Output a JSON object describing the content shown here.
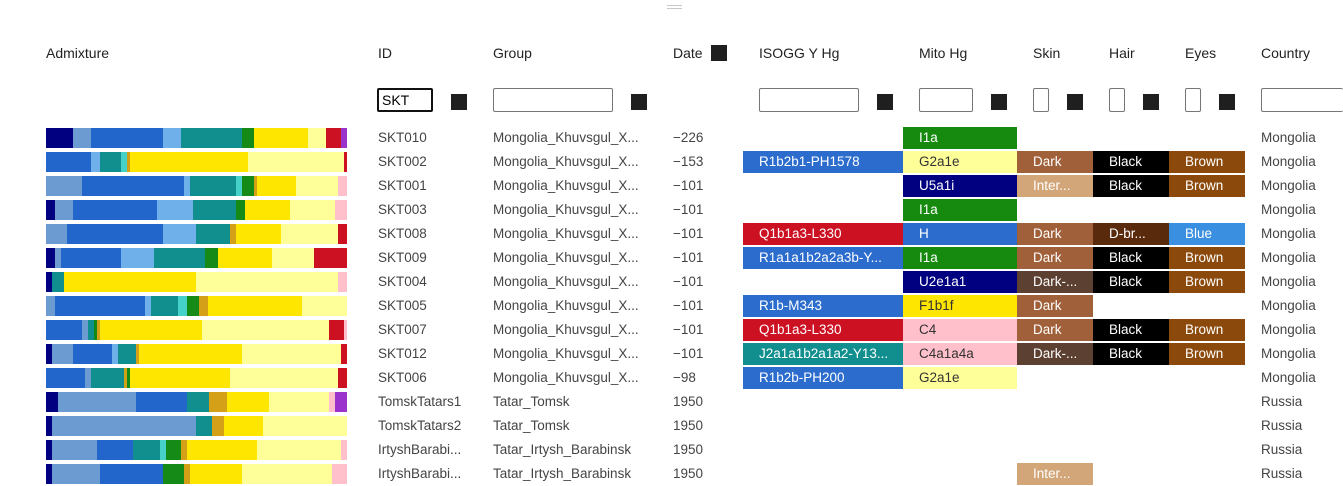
{
  "headers": {
    "admixture": "Admixture",
    "id": "ID",
    "group": "Group",
    "date": "Date",
    "ysogg": "ISOGG Y Hg",
    "mito": "Mito Hg",
    "skin": "Skin",
    "hair": "Hair",
    "eyes": "Eyes",
    "country": "Country"
  },
  "filters": {
    "id_value": "SKT",
    "group_value": ""
  },
  "palette": {
    "navy": "#000080",
    "steel": "#6b9bd1",
    "blue": "#2266cc",
    "light_blue": "#6fb0ea",
    "teal": "#118f8f",
    "aqua": "#45d1c8",
    "green": "#168a16",
    "gold": "#d4a017",
    "yellow": "#ffe600",
    "pale_yellow": "#ffff99",
    "pink": "#ffc0cb",
    "red": "#cc1122",
    "purple": "#9933cc"
  },
  "rows": [
    {
      "id": "SKT010",
      "group": "Mongolia_Khuvsgul_X...",
      "date": "−226",
      "ysogg": "",
      "ycolor": "",
      "mito": "I1a",
      "mcolor": "#158a0f",
      "mtext": "#ffffff",
      "skin": "",
      "scolor": "",
      "hair": "",
      "hcolor": "",
      "eyes": "",
      "ecolor": "",
      "country": "Mongolia",
      "admixture": [
        [
          "navy",
          0.09
        ],
        [
          "steel",
          0.06
        ],
        [
          "blue",
          0.24
        ],
        [
          "light_blue",
          0.06
        ],
        [
          "teal",
          0.2
        ],
        [
          "green",
          0.04
        ],
        [
          "yellow",
          0.18
        ],
        [
          "pale_yellow",
          0.06
        ],
        [
          "red",
          0.05
        ],
        [
          "purple",
          0.02
        ]
      ]
    },
    {
      "id": "SKT002",
      "group": "Mongolia_Khuvsgul_X...",
      "date": "−153",
      "ysogg": "R1b2b1-PH1578",
      "ycolor": "#2b6ccd",
      "mito": "G2a1e",
      "mcolor": "#ffff99",
      "mtext": "#333333",
      "skin": "Dark",
      "scolor": "#a0603a",
      "hair": "Black",
      "hcolor": "#000000",
      "eyes": "Brown",
      "ecolor": "#8b4a0b",
      "country": "Mongolia",
      "admixture": [
        [
          "blue",
          0.15
        ],
        [
          "light_blue",
          0.03
        ],
        [
          "teal",
          0.07
        ],
        [
          "aqua",
          0.02
        ],
        [
          "gold",
          0.01
        ],
        [
          "yellow",
          0.39
        ],
        [
          "pale_yellow",
          0.32
        ],
        [
          "red",
          0.01
        ]
      ]
    },
    {
      "id": "SKT001",
      "group": "Mongolia_Khuvsgul_X...",
      "date": "−101",
      "ysogg": "",
      "ycolor": "",
      "mito": "U5a1i",
      "mcolor": "#000080",
      "mtext": "#ffffff",
      "skin": "Inter...",
      "scolor": "#d2a679",
      "hair": "Black",
      "hcolor": "#000000",
      "eyes": "Brown",
      "ecolor": "#8b4a0b",
      "country": "Mongolia",
      "admixture": [
        [
          "steel",
          0.12
        ],
        [
          "blue",
          0.34
        ],
        [
          "light_blue",
          0.02
        ],
        [
          "teal",
          0.15
        ],
        [
          "aqua",
          0.02
        ],
        [
          "green",
          0.04
        ],
        [
          "gold",
          0.01
        ],
        [
          "yellow",
          0.13
        ],
        [
          "pale_yellow",
          0.14
        ],
        [
          "pink",
          0.03
        ]
      ]
    },
    {
      "id": "SKT003",
      "group": "Mongolia_Khuvsgul_X...",
      "date": "−101",
      "ysogg": "",
      "ycolor": "",
      "mito": "I1a",
      "mcolor": "#158a0f",
      "mtext": "#ffffff",
      "skin": "",
      "scolor": "",
      "hair": "",
      "hcolor": "",
      "eyes": "",
      "ecolor": "",
      "country": "Mongolia",
      "admixture": [
        [
          "navy",
          0.03
        ],
        [
          "steel",
          0.06
        ],
        [
          "blue",
          0.28
        ],
        [
          "light_blue",
          0.12
        ],
        [
          "teal",
          0.14
        ],
        [
          "green",
          0.03
        ],
        [
          "yellow",
          0.15
        ],
        [
          "pale_yellow",
          0.15
        ],
        [
          "pink",
          0.04
        ]
      ]
    },
    {
      "id": "SKT008",
      "group": "Mongolia_Khuvsgul_X...",
      "date": "−101",
      "ysogg": "Q1b1a3-L330",
      "ycolor": "#cc1122",
      "mito": "H",
      "mcolor": "#2b6ccd",
      "mtext": "#ffffff",
      "skin": "Dark",
      "scolor": "#a0603a",
      "hair": "D-br...",
      "hcolor": "#5a2a0c",
      "eyes": "Blue",
      "ecolor": "#3a8fe0",
      "country": "Mongolia",
      "admixture": [
        [
          "steel",
          0.07
        ],
        [
          "blue",
          0.32
        ],
        [
          "light_blue",
          0.11
        ],
        [
          "teal",
          0.11
        ],
        [
          "gold",
          0.02
        ],
        [
          "yellow",
          0.15
        ],
        [
          "pale_yellow",
          0.19
        ],
        [
          "red",
          0.03
        ]
      ]
    },
    {
      "id": "SKT009",
      "group": "Mongolia_Khuvsgul_X...",
      "date": "−101",
      "ysogg": "R1a1a1b2a2a3b-Y...",
      "ycolor": "#2b6ccd",
      "mito": "I1a",
      "mcolor": "#158a0f",
      "mtext": "#ffffff",
      "skin": "Dark",
      "scolor": "#a0603a",
      "hair": "Black",
      "hcolor": "#000000",
      "eyes": "Brown",
      "ecolor": "#8b4a0b",
      "country": "Mongolia",
      "admixture": [
        [
          "navy",
          0.03
        ],
        [
          "steel",
          0.02
        ],
        [
          "blue",
          0.2
        ],
        [
          "light_blue",
          0.11
        ],
        [
          "teal",
          0.17
        ],
        [
          "green",
          0.04
        ],
        [
          "yellow",
          0.18
        ],
        [
          "pale_yellow",
          0.14
        ],
        [
          "red",
          0.11
        ]
      ]
    },
    {
      "id": "SKT004",
      "group": "Mongolia_Khuvsgul_X...",
      "date": "−101",
      "ysogg": "",
      "ycolor": "",
      "mito": "U2e1a1",
      "mcolor": "#000080",
      "mtext": "#ffffff",
      "skin": "Dark-...",
      "scolor": "#5c4133",
      "hair": "Black",
      "hcolor": "#000000",
      "eyes": "Brown",
      "ecolor": "#8b4a0b",
      "country": "Mongolia",
      "admixture": [
        [
          "navy",
          0.02
        ],
        [
          "teal",
          0.04
        ],
        [
          "yellow",
          0.44
        ],
        [
          "pale_yellow",
          0.47
        ],
        [
          "pink",
          0.03
        ]
      ]
    },
    {
      "id": "SKT005",
      "group": "Mongolia_Khuvsgul_X...",
      "date": "−101",
      "ysogg": "R1b-M343",
      "ycolor": "#2b6ccd",
      "mito": "F1b1f",
      "mcolor": "#ffe600",
      "mtext": "#333333",
      "skin": "Dark",
      "scolor": "#a0603a",
      "hair": "",
      "hcolor": "",
      "eyes": "",
      "ecolor": "",
      "country": "Mongolia",
      "admixture": [
        [
          "steel",
          0.03
        ],
        [
          "blue",
          0.3
        ],
        [
          "light_blue",
          0.02
        ],
        [
          "teal",
          0.09
        ],
        [
          "aqua",
          0.03
        ],
        [
          "green",
          0.04
        ],
        [
          "gold",
          0.03
        ],
        [
          "yellow",
          0.31
        ],
        [
          "pale_yellow",
          0.15
        ]
      ]
    },
    {
      "id": "SKT007",
      "group": "Mongolia_Khuvsgul_X...",
      "date": "−101",
      "ysogg": "Q1b1a3-L330",
      "ycolor": "#cc1122",
      "mito": "C4",
      "mcolor": "#ffc0cb",
      "mtext": "#333333",
      "skin": "Dark",
      "scolor": "#a0603a",
      "hair": "Black",
      "hcolor": "#000000",
      "eyes": "Brown",
      "ecolor": "#8b4a0b",
      "country": "Mongolia",
      "admixture": [
        [
          "blue",
          0.12
        ],
        [
          "steel",
          0.02
        ],
        [
          "teal",
          0.02
        ],
        [
          "green",
          0.01
        ],
        [
          "gold",
          0.01
        ],
        [
          "yellow",
          0.34
        ],
        [
          "pale_yellow",
          0.42
        ],
        [
          "red",
          0.05
        ],
        [
          "pink",
          0.01
        ]
      ]
    },
    {
      "id": "SKT012",
      "group": "Mongolia_Khuvsgul_X...",
      "date": "−101",
      "ysogg": "J2a1a1b2a1a2-Y13...",
      "ycolor": "#118f8f",
      "mito": "C4a1a4a",
      "mcolor": "#ffc0cb",
      "mtext": "#333333",
      "skin": "Dark-...",
      "scolor": "#5c4133",
      "hair": "Black",
      "hcolor": "#000000",
      "eyes": "Brown",
      "ecolor": "#8b4a0b",
      "country": "Mongolia",
      "admixture": [
        [
          "navy",
          0.02
        ],
        [
          "steel",
          0.07
        ],
        [
          "blue",
          0.13
        ],
        [
          "light_blue",
          0.02
        ],
        [
          "teal",
          0.06
        ],
        [
          "gold",
          0.01
        ],
        [
          "yellow",
          0.34
        ],
        [
          "pale_yellow",
          0.33
        ],
        [
          "red",
          0.02
        ]
      ]
    },
    {
      "id": "SKT006",
      "group": "Mongolia_Khuvsgul_X...",
      "date": "−98",
      "ysogg": "R1b2b-PH200",
      "ycolor": "#2b6ccd",
      "mito": "G2a1e",
      "mcolor": "#ffff99",
      "mtext": "#333333",
      "skin": "",
      "scolor": "",
      "hair": "",
      "hcolor": "",
      "eyes": "",
      "ecolor": "",
      "country": "Mongolia",
      "admixture": [
        [
          "blue",
          0.13
        ],
        [
          "steel",
          0.02
        ],
        [
          "teal",
          0.11
        ],
        [
          "gold",
          0.01
        ],
        [
          "green",
          0.01
        ],
        [
          "yellow",
          0.33
        ],
        [
          "pale_yellow",
          0.36
        ],
        [
          "red",
          0.03
        ]
      ]
    },
    {
      "id": "TomskTatars1",
      "group": "Tatar_Tomsk",
      "date": "1950",
      "ysogg": "",
      "ycolor": "",
      "mito": "",
      "mcolor": "",
      "mtext": "#333333",
      "skin": "",
      "scolor": "",
      "hair": "",
      "hcolor": "",
      "eyes": "",
      "ecolor": "",
      "country": "Russia",
      "admixture": [
        [
          "navy",
          0.04
        ],
        [
          "steel",
          0.26
        ],
        [
          "blue",
          0.17
        ],
        [
          "teal",
          0.07
        ],
        [
          "gold",
          0.06
        ],
        [
          "yellow",
          0.14
        ],
        [
          "pale_yellow",
          0.2
        ],
        [
          "pink",
          0.02
        ],
        [
          "purple",
          0.04
        ]
      ]
    },
    {
      "id": "TomskTatars2",
      "group": "Tatar_Tomsk",
      "date": "1950",
      "ysogg": "",
      "ycolor": "",
      "mito": "",
      "mcolor": "",
      "mtext": "#333333",
      "skin": "",
      "scolor": "",
      "hair": "",
      "hcolor": "",
      "eyes": "",
      "ecolor": "",
      "country": "Russia",
      "admixture": [
        [
          "navy",
          0.02
        ],
        [
          "steel",
          0.48
        ],
        [
          "teal",
          0.05
        ],
        [
          "gold",
          0.04
        ],
        [
          "yellow",
          0.13
        ],
        [
          "pale_yellow",
          0.28
        ]
      ]
    },
    {
      "id": "IrtyshBarabi...",
      "group": "Tatar_Irtysh_Barabinsk",
      "date": "1950",
      "ysogg": "",
      "ycolor": "",
      "mito": "",
      "mcolor": "",
      "mtext": "#333333",
      "skin": "",
      "scolor": "",
      "hair": "",
      "hcolor": "",
      "eyes": "",
      "ecolor": "",
      "country": "Russia",
      "admixture": [
        [
          "navy",
          0.02
        ],
        [
          "steel",
          0.15
        ],
        [
          "blue",
          0.12
        ],
        [
          "teal",
          0.09
        ],
        [
          "aqua",
          0.02
        ],
        [
          "green",
          0.05
        ],
        [
          "gold",
          0.02
        ],
        [
          "yellow",
          0.23
        ],
        [
          "pale_yellow",
          0.28
        ],
        [
          "pink",
          0.02
        ]
      ]
    },
    {
      "id": "IrtyshBarabi...",
      "group": "Tatar_Irtysh_Barabinsk",
      "date": "1950",
      "ysogg": "",
      "ycolor": "",
      "mito": "",
      "mcolor": "",
      "mtext": "#333333",
      "skin": "Inter...",
      "scolor": "#d2a679",
      "hair": "",
      "hcolor": "",
      "eyes": "",
      "ecolor": "",
      "country": "Russia",
      "admixture": [
        [
          "navy",
          0.02
        ],
        [
          "steel",
          0.16
        ],
        [
          "blue",
          0.21
        ],
        [
          "green",
          0.07
        ],
        [
          "gold",
          0.02
        ],
        [
          "yellow",
          0.17
        ],
        [
          "pale_yellow",
          0.3
        ],
        [
          "pink",
          0.05
        ]
      ]
    }
  ]
}
